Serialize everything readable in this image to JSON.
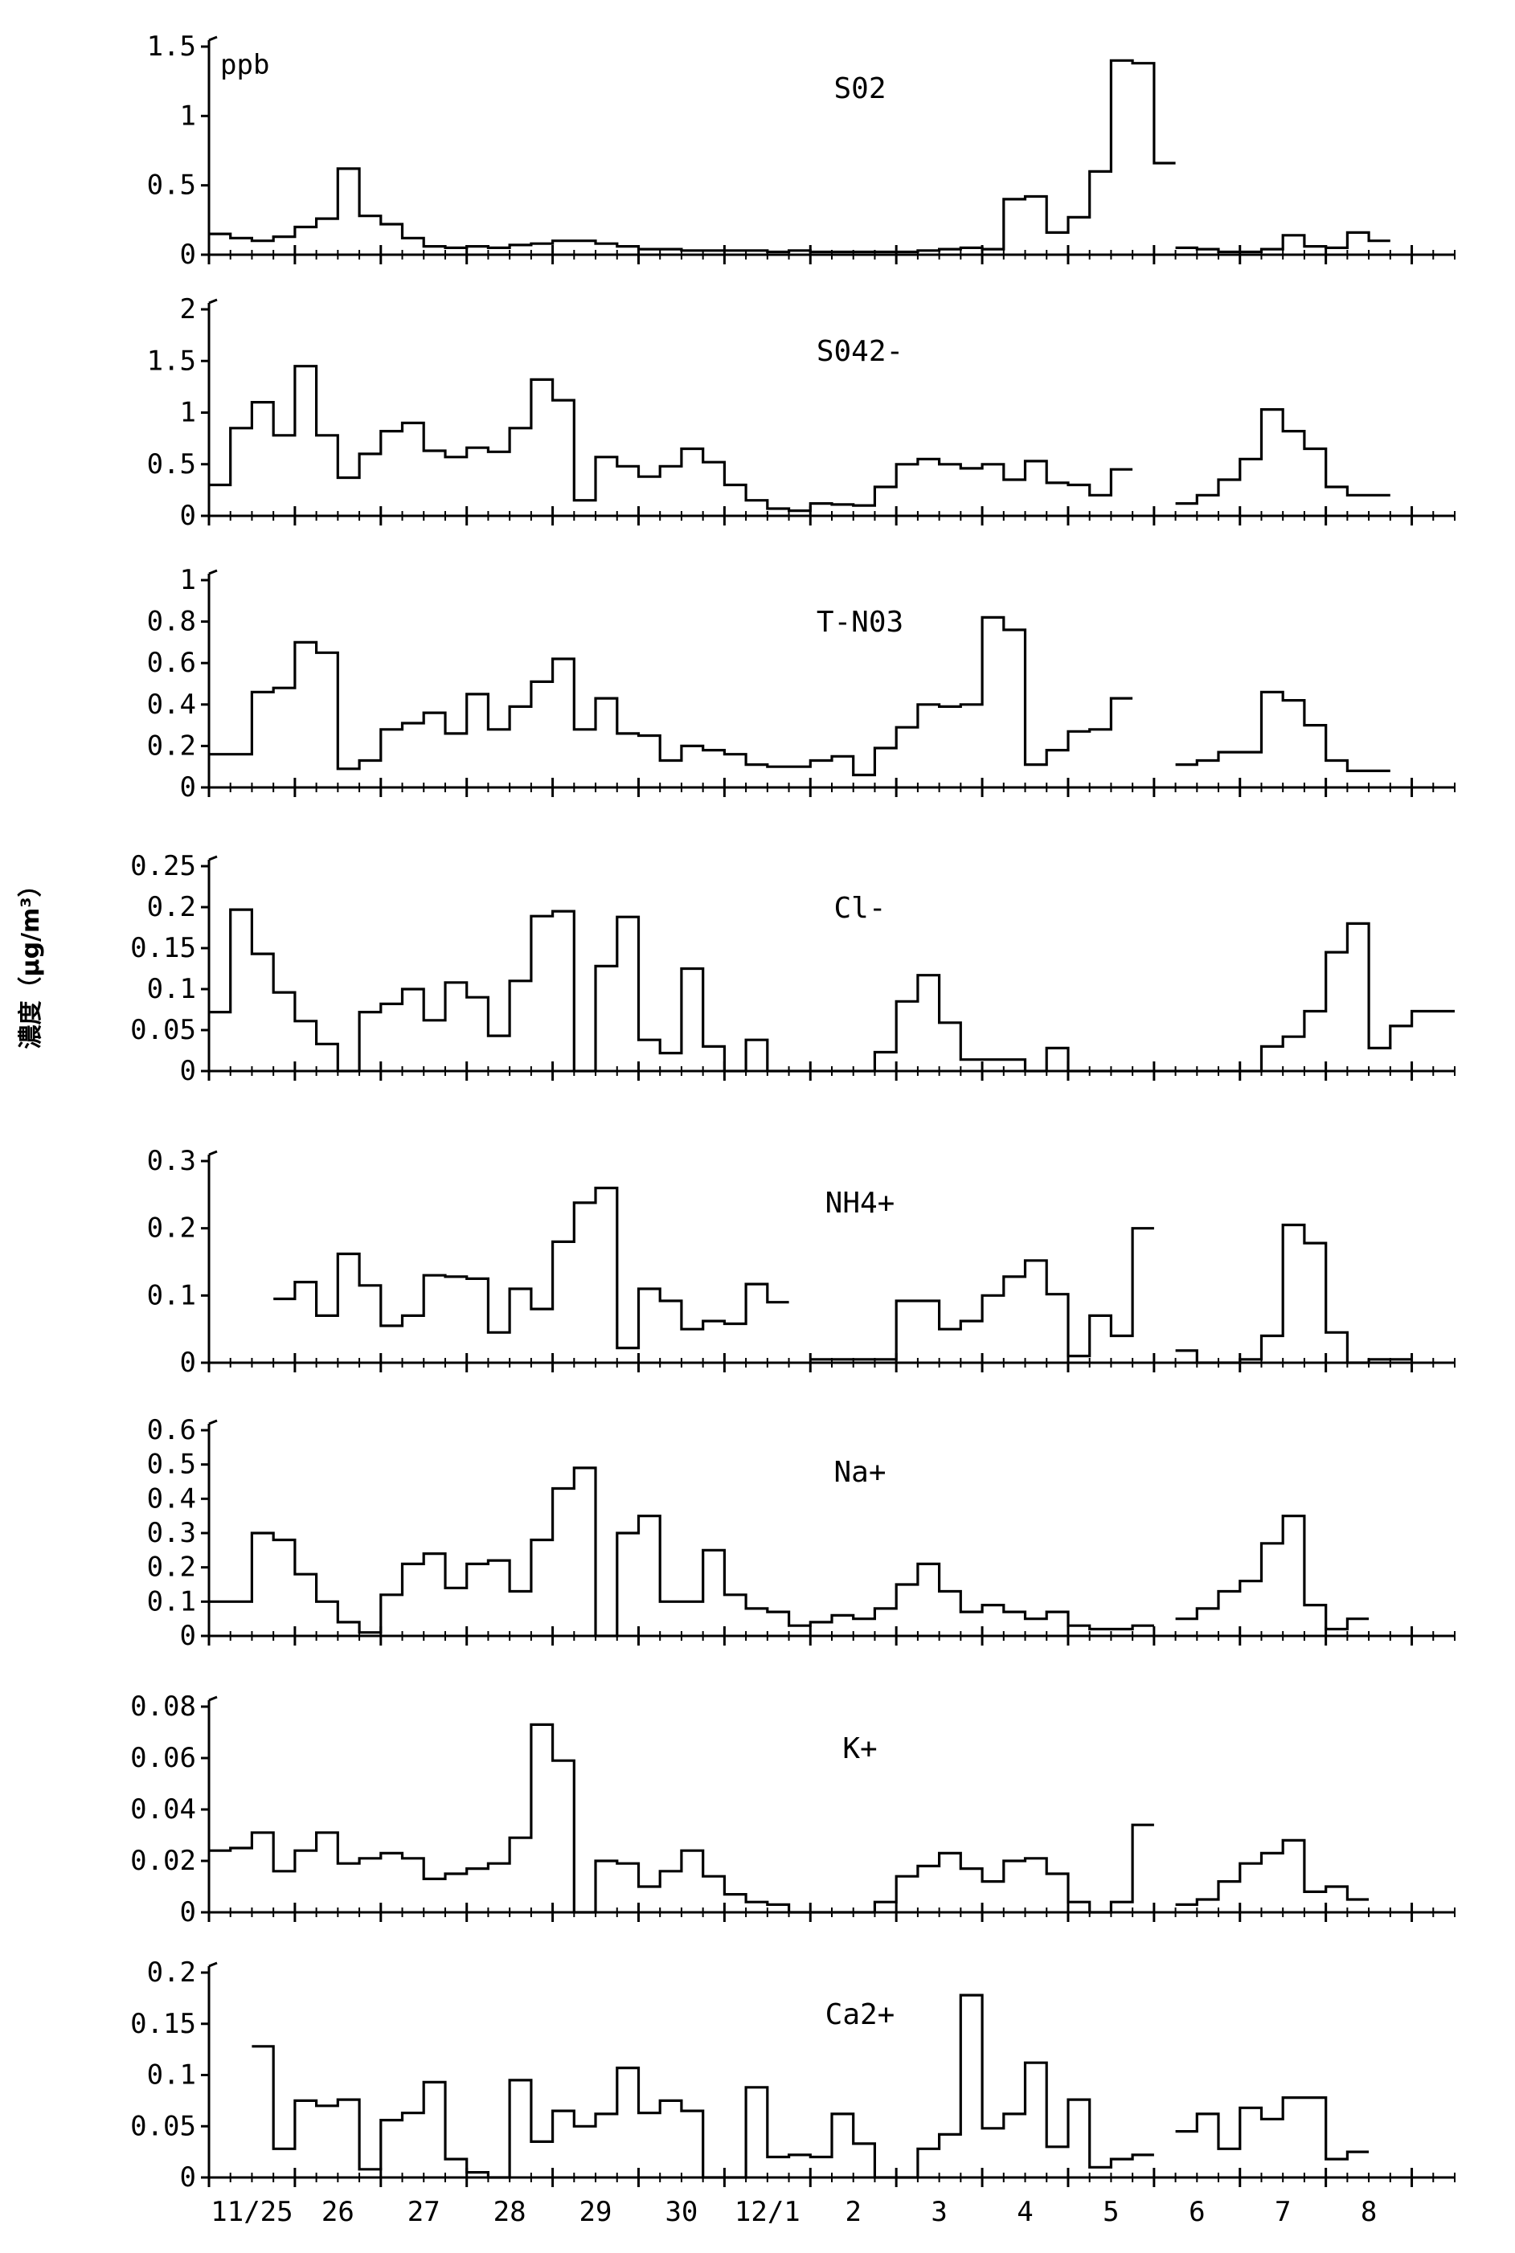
{
  "chart_data": {
    "type": "line",
    "step": true,
    "ylabel": "濃度（μg/m³）",
    "x_tick_labels": [
      "11/25",
      "26",
      "27",
      "28",
      "29",
      "30",
      "12/1",
      "2",
      "3",
      "4",
      "5",
      "6",
      "7",
      "8"
    ],
    "panels": [
      {
        "title": "S02",
        "unit": "ppb",
        "ylim": [
          0,
          1.5
        ],
        "yticks": [
          0,
          0.5,
          1,
          1.5
        ],
        "ytick_labels": [
          "0",
          "0.5",
          "1",
          "1.5"
        ],
        "segments": [
          {
            "x0": 25.0,
            "step": 0.25,
            "values": [
              0.15,
              0.12,
              0.1,
              0.13,
              0.2,
              0.26,
              0.62,
              0.28,
              0.22,
              0.12,
              0.06,
              0.05,
              0.06,
              0.05,
              0.07,
              0.08,
              0.1,
              0.1,
              0.08,
              0.06,
              0.04,
              0.04,
              0.03,
              0.03,
              0.03,
              0.03,
              0.02,
              0.03,
              0.02,
              0.02,
              0.02,
              0.02,
              0.02,
              0.03,
              0.04,
              0.05,
              0.04,
              0.4,
              0.42,
              0.16,
              0.27,
              0.6,
              1.4,
              1.38,
              0.66
            ]
          },
          {
            "x0": 36.25,
            "step": 0.25,
            "values": [
              0.05,
              0.04,
              0.02,
              0.02,
              0.04,
              0.14,
              0.06,
              0.05,
              0.16,
              0.1
            ]
          }
        ]
      },
      {
        "title": "S042-",
        "unit": "",
        "ylim": [
          0,
          2
        ],
        "yticks": [
          0,
          0.5,
          1,
          1.5,
          2
        ],
        "ytick_labels": [
          "0",
          "0.5",
          "1",
          "1.5",
          "2"
        ],
        "segments": [
          {
            "x0": 25.0,
            "step": 0.25,
            "values": [
              0.3,
              0.85,
              1.1,
              0.78,
              1.45,
              0.78,
              0.37,
              0.6,
              0.82,
              0.9,
              0.63,
              0.57,
              0.66,
              0.62,
              0.85,
              1.32,
              1.12,
              0.15,
              0.57,
              0.48,
              0.38,
              0.48,
              0.65,
              0.52,
              0.3,
              0.15,
              0.07,
              0.05,
              0.12,
              0.11,
              0.1,
              0.28,
              0.5,
              0.55,
              0.5,
              0.46,
              0.5,
              0.35,
              0.53,
              0.32,
              0.3,
              0.2,
              0.45
            ]
          },
          {
            "x0": 36.25,
            "step": 0.25,
            "values": [
              0.12,
              0.2,
              0.35,
              0.55,
              1.03,
              0.82,
              0.65,
              0.28,
              0.2,
              0.2
            ]
          }
        ]
      },
      {
        "title": "T-N03",
        "unit": "",
        "ylim": [
          0,
          1
        ],
        "yticks": [
          0,
          0.2,
          0.4,
          0.6,
          0.8,
          1
        ],
        "ytick_labels": [
          "0",
          "0.2",
          "0.4",
          "0.6",
          "0.8",
          "1"
        ],
        "segments": [
          {
            "x0": 25.0,
            "step": 0.25,
            "values": [
              0.16,
              0.16,
              0.46,
              0.48,
              0.7,
              0.65,
              0.09,
              0.13,
              0.28,
              0.31,
              0.36,
              0.26,
              0.45,
              0.28,
              0.39,
              0.51,
              0.62,
              0.28,
              0.43,
              0.26,
              0.25,
              0.13,
              0.2,
              0.18,
              0.16,
              0.11,
              0.1,
              0.1,
              0.13,
              0.15,
              0.06,
              0.19,
              0.29,
              0.4,
              0.39,
              0.4,
              0.82,
              0.76,
              0.11,
              0.18,
              0.27,
              0.28,
              0.43
            ]
          },
          {
            "x0": 36.25,
            "step": 0.25,
            "values": [
              0.11,
              0.13,
              0.17,
              0.17,
              0.46,
              0.42,
              0.3,
              0.13,
              0.08,
              0.08
            ]
          }
        ]
      },
      {
        "title": "Cl-",
        "unit": "",
        "ylim": [
          0,
          0.25
        ],
        "yticks": [
          0,
          0.05,
          0.1,
          0.15,
          0.2,
          0.25
        ],
        "ytick_labels": [
          "0",
          "0.05",
          "0.1",
          "0.15",
          "0.2",
          "0.25"
        ],
        "segments": [
          {
            "x0": 25.0,
            "step": 0.25,
            "values": [
              0.072,
              0.197,
              0.143,
              0.096,
              0.061,
              0.033,
              0.0,
              0.072,
              0.082,
              0.1,
              0.062,
              0.108,
              0.09,
              0.043,
              0.11,
              0.189,
              0.195,
              0.0,
              0.128,
              0.188,
              0.038,
              0.022,
              0.125,
              0.03,
              0.0,
              0.038,
              0.0,
              0.0,
              0.0,
              0.0,
              0.0,
              0.023,
              0.085,
              0.117,
              0.059,
              0.014,
              0.014,
              0.014,
              0.0,
              0.028,
              0.0,
              0.0,
              0.0,
              0.0,
              0.0,
              0.0,
              0.0,
              0.0,
              0.0,
              0.03,
              0.042,
              0.073,
              0.145,
              0.18,
              0.028,
              0.055,
              0.073,
              0.073
            ]
          }
        ]
      },
      {
        "title": "NH4+",
        "unit": "",
        "ylim": [
          0,
          0.3
        ],
        "yticks": [
          0,
          0.1,
          0.2,
          0.3
        ],
        "ytick_labels": [
          "0",
          "0.1",
          "0.2",
          "0.3"
        ],
        "segments": [
          {
            "x0": 25.75,
            "step": 0.25,
            "values": [
              0.095,
              0.12,
              0.07,
              0.162,
              0.115,
              0.055,
              0.07,
              0.13,
              0.128,
              0.125,
              0.045,
              0.11,
              0.08,
              0.18,
              0.238,
              0.26,
              0.022,
              0.11,
              0.092,
              0.05,
              0.062,
              0.058,
              0.117,
              0.09
            ]
          },
          {
            "x0": 32.0,
            "step": 0.25,
            "values": [
              0.005,
              0.005,
              0.005,
              0.005,
              0.092,
              0.092,
              0.05,
              0.062,
              0.1,
              0.128,
              0.152,
              0.102,
              0.01,
              0.07,
              0.04,
              0.2
            ]
          },
          {
            "x0": 36.25,
            "step": 0.25,
            "values": [
              0.018,
              0.0,
              0.0,
              0.005,
              0.04,
              0.205,
              0.178,
              0.045,
              0.0,
              0.005,
              0.005
            ]
          }
        ]
      },
      {
        "title": "Na+",
        "unit": "",
        "ylim": [
          0,
          0.6
        ],
        "yticks": [
          0,
          0.1,
          0.2,
          0.3,
          0.4,
          0.5,
          0.6
        ],
        "ytick_labels": [
          "0",
          "0.1",
          "0.2",
          "0.3",
          "0.4",
          "0.5",
          "0.6"
        ],
        "segments": [
          {
            "x0": 25.0,
            "step": 0.25,
            "values": [
              0.1,
              0.1,
              0.3,
              0.28,
              0.18,
              0.1,
              0.04,
              0.01,
              0.12,
              0.21,
              0.24,
              0.14,
              0.21,
              0.22,
              0.13,
              0.28,
              0.43,
              0.49,
              0.0,
              0.3,
              0.35,
              0.1,
              0.1,
              0.25,
              0.12,
              0.08,
              0.07,
              0.03,
              0.04,
              0.06,
              0.05,
              0.08,
              0.15,
              0.21,
              0.13,
              0.07,
              0.09,
              0.07,
              0.05,
              0.07,
              0.03,
              0.02,
              0.02,
              0.03
            ]
          },
          {
            "x0": 36.25,
            "step": 0.25,
            "values": [
              0.05,
              0.08,
              0.13,
              0.16,
              0.27,
              0.35,
              0.09,
              0.02,
              0.05
            ]
          }
        ]
      },
      {
        "title": "K+",
        "unit": "",
        "ylim": [
          0,
          0.08
        ],
        "yticks": [
          0,
          0.02,
          0.04,
          0.06,
          0.08
        ],
        "ytick_labels": [
          "0",
          "0.02",
          "0.04",
          "0.06",
          "0.08"
        ],
        "segments": [
          {
            "x0": 25.0,
            "step": 0.25,
            "values": [
              0.024,
              0.025,
              0.031,
              0.016,
              0.024,
              0.031,
              0.019,
              0.021,
              0.023,
              0.021,
              0.013,
              0.015,
              0.017,
              0.019,
              0.029,
              0.073,
              0.059,
              0.0,
              0.02,
              0.019,
              0.01,
              0.016,
              0.024,
              0.014,
              0.007,
              0.004,
              0.003,
              0.0,
              0.0,
              0.0,
              0.0,
              0.004,
              0.014,
              0.018,
              0.023,
              0.017,
              0.012,
              0.02,
              0.021,
              0.015,
              0.004,
              0.0,
              0.004,
              0.034
            ]
          },
          {
            "x0": 36.25,
            "step": 0.25,
            "values": [
              0.003,
              0.005,
              0.012,
              0.019,
              0.023,
              0.028,
              0.008,
              0.01,
              0.005
            ]
          }
        ]
      },
      {
        "title": "Ca2+",
        "unit": "",
        "ylim": [
          0,
          0.2
        ],
        "yticks": [
          0,
          0.05,
          0.1,
          0.15,
          0.2
        ],
        "ytick_labels": [
          "0",
          "0.05",
          "0.1",
          "0.15",
          "0.2"
        ],
        "segments": [
          {
            "x0": 25.5,
            "step": 0.25,
            "values": [
              0.128,
              0.028,
              0.075,
              0.07,
              0.076,
              0.008,
              0.056,
              0.063,
              0.093,
              0.018,
              0.005,
              0.0,
              0.095,
              0.035,
              0.065,
              0.05,
              0.062,
              0.107,
              0.063,
              0.075,
              0.065,
              0.0,
              0.0,
              0.088,
              0.02,
              0.022,
              0.02,
              0.062,
              0.033,
              0.0,
              0.0,
              0.028,
              0.042,
              0.178,
              0.048,
              0.062,
              0.112,
              0.03,
              0.076,
              0.01,
              0.018,
              0.022
            ]
          },
          {
            "x0": 36.25,
            "step": 0.25,
            "values": [
              0.045,
              0.062,
              0.028,
              0.068,
              0.057,
              0.078,
              0.078,
              0.018,
              0.025
            ]
          }
        ]
      }
    ]
  }
}
